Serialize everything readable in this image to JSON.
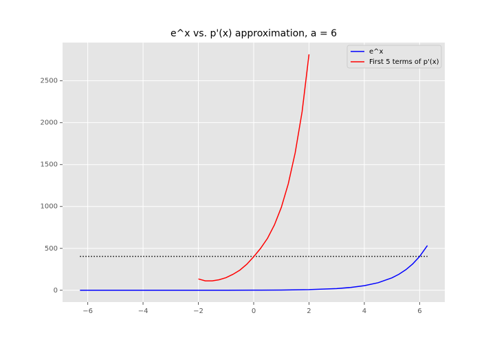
{
  "chart_data": {
    "type": "line",
    "title": "e^x vs. p'(x) approximation, a = 6",
    "xlim": [
      -6.91,
      6.91
    ],
    "ylim": [
      -141,
      2956
    ],
    "xticks": [
      {
        "value": -6,
        "label": "−6"
      },
      {
        "value": -4,
        "label": "−4"
      },
      {
        "value": -2,
        "label": "−2"
      },
      0,
      2,
      4,
      6
    ],
    "yticks": [
      0,
      500,
      1000,
      1500,
      2000,
      2500
    ],
    "grid": true,
    "legend": "upper right",
    "series": [
      {
        "name": "e^x",
        "color": "#0000ff",
        "x": [
          -6.28,
          -5,
          -4,
          -3,
          -2,
          -1,
          0,
          1,
          2,
          3,
          3.5,
          4,
          4.5,
          5,
          5.25,
          5.5,
          5.75,
          6,
          6.28
        ],
        "values": [
          0.0019,
          0.0067,
          0.018,
          0.05,
          0.135,
          0.368,
          1,
          2.718,
          7.389,
          20.09,
          33.12,
          54.6,
          90.02,
          148.4,
          190.6,
          244.7,
          314.2,
          403.4,
          533.5
        ]
      },
      {
        "name": "First 5 terms of p'(x)",
        "color": "#ff0000",
        "x": [
          -2,
          -1.75,
          -1.5,
          -1.25,
          -1,
          -0.75,
          -0.5,
          -0.25,
          0,
          0.25,
          0.5,
          0.75,
          1,
          1.25,
          1.5,
          1.75,
          2
        ],
        "values": [
          135,
          112,
          112,
          125,
          150,
          190,
          240,
          310,
          400,
          500,
          620,
          780,
          990,
          1270,
          1640,
          2130,
          2815
        ]
      }
    ],
    "hline": {
      "y": 403.4,
      "x": [
        -6.28,
        6.28
      ],
      "color": "#000000",
      "style": "dotted"
    }
  }
}
